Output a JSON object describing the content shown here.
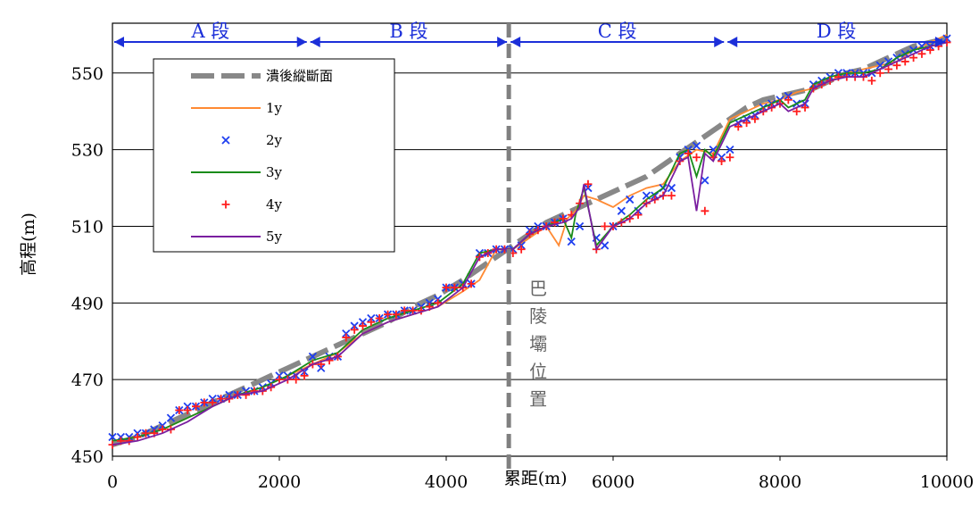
{
  "chart_data": {
    "type": "line",
    "title": "",
    "xlabel": "累距(m)",
    "ylabel": "高程(m)",
    "xlim": [
      0,
      10000
    ],
    "ylim": [
      450,
      563
    ],
    "x_ticks": [
      0,
      2000,
      4000,
      6000,
      8000,
      10000
    ],
    "y_ticks": [
      450,
      470,
      490,
      510,
      530,
      550
    ],
    "grid": "horizontal",
    "legend_position": "top-left",
    "sections": [
      {
        "label": "A 段",
        "x_start": 0,
        "x_end": 2350
      },
      {
        "label": "B 段",
        "x_start": 2350,
        "x_end": 4750
      },
      {
        "label": "C 段",
        "x_start": 4750,
        "x_end": 7350
      },
      {
        "label": "D 段",
        "x_start": 7350,
        "x_end": 10000
      }
    ],
    "annotation": {
      "label": "巴陵壩位置",
      "x": 4750
    },
    "series": [
      {
        "name": "潰後縱斷面",
        "color": "#888888",
        "style": "dashed",
        "x": [
          0,
          300,
          600,
          900,
          1200,
          1500,
          1800,
          2100,
          2400,
          2700,
          3000,
          3300,
          3600,
          3900,
          4200,
          4400,
          4600,
          4800,
          5000,
          5200,
          5400,
          5600,
          5800,
          6000,
          6200,
          6400,
          6600,
          6800,
          7000,
          7200,
          7400,
          7600,
          7800,
          8000,
          8200,
          8400,
          8600,
          8800,
          9000,
          9200,
          9400,
          9600,
          9800,
          10000
        ],
        "values": [
          453,
          455,
          458,
          461,
          464,
          467,
          470,
          473,
          476,
          479,
          482,
          485,
          489,
          492,
          496,
          499,
          502,
          505,
          508,
          511,
          513,
          515,
          517,
          519,
          521,
          523,
          526,
          529,
          532,
          535,
          538,
          541,
          543,
          544,
          545,
          546,
          548,
          550,
          551,
          553,
          555,
          557,
          558,
          559
        ]
      },
      {
        "name": "1y",
        "color": "#ff8a33",
        "style": "solid",
        "x": [
          0,
          300,
          600,
          900,
          1200,
          1500,
          1800,
          2100,
          2400,
          2700,
          3000,
          3300,
          3600,
          3900,
          4200,
          4400,
          4600,
          4800,
          5000,
          5200,
          5350,
          5450,
          5550,
          5650,
          5800,
          6000,
          6200,
          6400,
          6600,
          6800,
          7000,
          7200,
          7400,
          7600,
          7800,
          8000,
          8200,
          8400,
          8600,
          8800,
          9000,
          9200,
          9400,
          9600,
          9800,
          10000
        ],
        "values": [
          454,
          455,
          457,
          460,
          463,
          466,
          468,
          471,
          474,
          477,
          482,
          485,
          487,
          489,
          493,
          496,
          504,
          504,
          507,
          510,
          505,
          512,
          514,
          518,
          517,
          515,
          518,
          520,
          521,
          527,
          530,
          529,
          538,
          540,
          542,
          543,
          545,
          546,
          548,
          550,
          551,
          552,
          553,
          556,
          558,
          560
        ]
      },
      {
        "name": "2y",
        "color": "#1f3ff0",
        "style": "x-marker",
        "x": [
          0,
          100,
          200,
          300,
          400,
          500,
          600,
          700,
          800,
          900,
          1000,
          1100,
          1200,
          1300,
          1400,
          1500,
          1600,
          1700,
          1800,
          1900,
          2000,
          2100,
          2200,
          2300,
          2400,
          2500,
          2600,
          2700,
          2800,
          2900,
          3000,
          3100,
          3200,
          3300,
          3400,
          3500,
          3600,
          3700,
          3800,
          3900,
          4000,
          4100,
          4200,
          4300,
          4400,
          4500,
          4600,
          4700,
          4800,
          4900,
          5000,
          5100,
          5200,
          5300,
          5400,
          5500,
          5600,
          5700,
          5800,
          5900,
          6000,
          6100,
          6200,
          6300,
          6400,
          6500,
          6600,
          6700,
          6800,
          6900,
          7000,
          7100,
          7200,
          7300,
          7400,
          7500,
          7600,
          7700,
          7800,
          7900,
          8000,
          8100,
          8200,
          8300,
          8400,
          8500,
          8600,
          8700,
          8800,
          8900,
          9000,
          9100,
          9200,
          9300,
          9400,
          9500,
          9600,
          9700,
          9800,
          9900,
          10000
        ],
        "values": [
          455,
          455,
          455,
          456,
          456,
          457,
          458,
          460,
          462,
          463,
          463,
          464,
          465,
          465,
          466,
          466,
          467,
          467,
          468,
          469,
          471,
          471,
          471,
          472,
          476,
          473,
          476,
          476,
          482,
          484,
          485,
          486,
          486,
          487,
          487,
          488,
          488,
          489,
          490,
          491,
          494,
          494,
          495,
          495,
          503,
          503,
          504,
          504,
          504,
          505,
          509,
          510,
          510,
          511,
          512,
          506,
          510,
          520,
          507,
          505,
          510,
          514,
          517,
          514,
          518,
          518,
          520,
          520,
          528,
          530,
          531,
          522,
          530,
          528,
          530,
          537,
          538,
          539,
          541,
          542,
          543,
          544,
          542,
          542,
          547,
          548,
          549,
          550,
          550,
          550,
          550,
          550,
          552,
          553,
          554,
          555,
          556,
          557,
          557,
          558,
          559
        ]
      },
      {
        "name": "3y",
        "color": "#1a8c1a",
        "style": "solid",
        "x": [
          0,
          300,
          600,
          900,
          1200,
          1500,
          1800,
          2100,
          2400,
          2700,
          3000,
          3300,
          3600,
          3900,
          4200,
          4400,
          4600,
          4800,
          5000,
          5200,
          5400,
          5500,
          5550,
          5650,
          5800,
          6000,
          6200,
          6400,
          6600,
          6800,
          6900,
          7000,
          7100,
          7200,
          7400,
          7600,
          7800,
          8000,
          8100,
          8200,
          8300,
          8400,
          8600,
          8800,
          9000,
          9200,
          9400,
          9600,
          9800,
          10000
        ],
        "values": [
          454,
          455,
          457,
          460,
          463,
          466,
          468,
          471,
          475,
          477,
          483,
          486,
          488,
          490,
          495,
          503,
          504,
          504,
          508,
          510,
          512,
          507,
          513,
          520,
          505,
          510,
          513,
          517,
          520,
          529,
          530,
          523,
          530,
          528,
          537,
          539,
          541,
          543,
          541,
          542,
          543,
          547,
          549,
          550,
          550,
          551,
          554,
          556,
          557,
          558
        ]
      },
      {
        "name": "4y",
        "color": "#ff1f1f",
        "style": "plus-marker",
        "x": [
          0,
          100,
          200,
          300,
          400,
          500,
          600,
          700,
          800,
          900,
          1000,
          1100,
          1200,
          1300,
          1400,
          1500,
          1600,
          1700,
          1800,
          1900,
          2000,
          2100,
          2200,
          2300,
          2400,
          2500,
          2600,
          2700,
          2800,
          2900,
          3000,
          3100,
          3200,
          3300,
          3400,
          3500,
          3600,
          3700,
          3800,
          3900,
          4000,
          4100,
          4200,
          4300,
          4400,
          4500,
          4600,
          4700,
          4800,
          4900,
          5000,
          5100,
          5200,
          5300,
          5400,
          5500,
          5600,
          5700,
          5800,
          5900,
          6000,
          6100,
          6200,
          6300,
          6400,
          6500,
          6600,
          6700,
          6800,
          6900,
          7000,
          7100,
          7200,
          7300,
          7400,
          7500,
          7600,
          7700,
          7800,
          7900,
          8000,
          8100,
          8200,
          8300,
          8400,
          8500,
          8600,
          8700,
          8800,
          8900,
          9000,
          9100,
          9200,
          9300,
          9400,
          9500,
          9600,
          9700,
          9800,
          9900,
          10000
        ],
        "values": [
          453,
          454,
          454,
          455,
          456,
          456,
          457,
          457,
          462,
          462,
          463,
          464,
          464,
          465,
          465,
          466,
          466,
          467,
          467,
          468,
          470,
          470,
          470,
          471,
          474,
          474,
          475,
          476,
          481,
          483,
          484,
          485,
          486,
          487,
          487,
          488,
          488,
          488,
          489,
          490,
          494,
          494,
          494,
          495,
          502,
          503,
          504,
          504,
          503,
          504,
          508,
          509,
          510,
          511,
          512,
          513,
          516,
          521,
          504,
          510,
          510,
          511,
          512,
          513,
          516,
          517,
          518,
          518,
          527,
          529,
          528,
          514,
          528,
          527,
          528,
          536,
          537,
          538,
          540,
          541,
          542,
          543,
          540,
          541,
          546,
          547,
          548,
          549,
          549,
          549,
          549,
          548,
          550,
          551,
          552,
          553,
          554,
          555,
          556,
          557,
          558
        ]
      },
      {
        "name": "5y",
        "color": "#7a1fa0",
        "style": "solid",
        "x": [
          0,
          300,
          600,
          900,
          1200,
          1500,
          1800,
          2100,
          2400,
          2700,
          3000,
          3300,
          3600,
          3900,
          4200,
          4400,
          4600,
          4800,
          5000,
          5200,
          5400,
          5500,
          5600,
          5650,
          5800,
          6000,
          6200,
          6400,
          6600,
          6800,
          6900,
          7000,
          7100,
          7200,
          7400,
          7600,
          7800,
          8000,
          8100,
          8200,
          8300,
          8400,
          8600,
          8800,
          9000,
          9200,
          9400,
          9600,
          9800,
          10000
        ],
        "values": [
          453,
          454,
          456,
          459,
          463,
          466,
          467,
          470,
          474,
          476,
          482,
          485,
          487,
          489,
          494,
          502,
          504,
          504,
          508,
          510,
          511,
          512,
          515,
          521,
          504,
          510,
          512,
          516,
          518,
          527,
          528,
          514,
          529,
          527,
          536,
          538,
          540,
          542,
          540,
          541,
          542,
          546,
          548,
          549,
          549,
          551,
          553,
          555,
          557,
          558
        ]
      }
    ]
  }
}
